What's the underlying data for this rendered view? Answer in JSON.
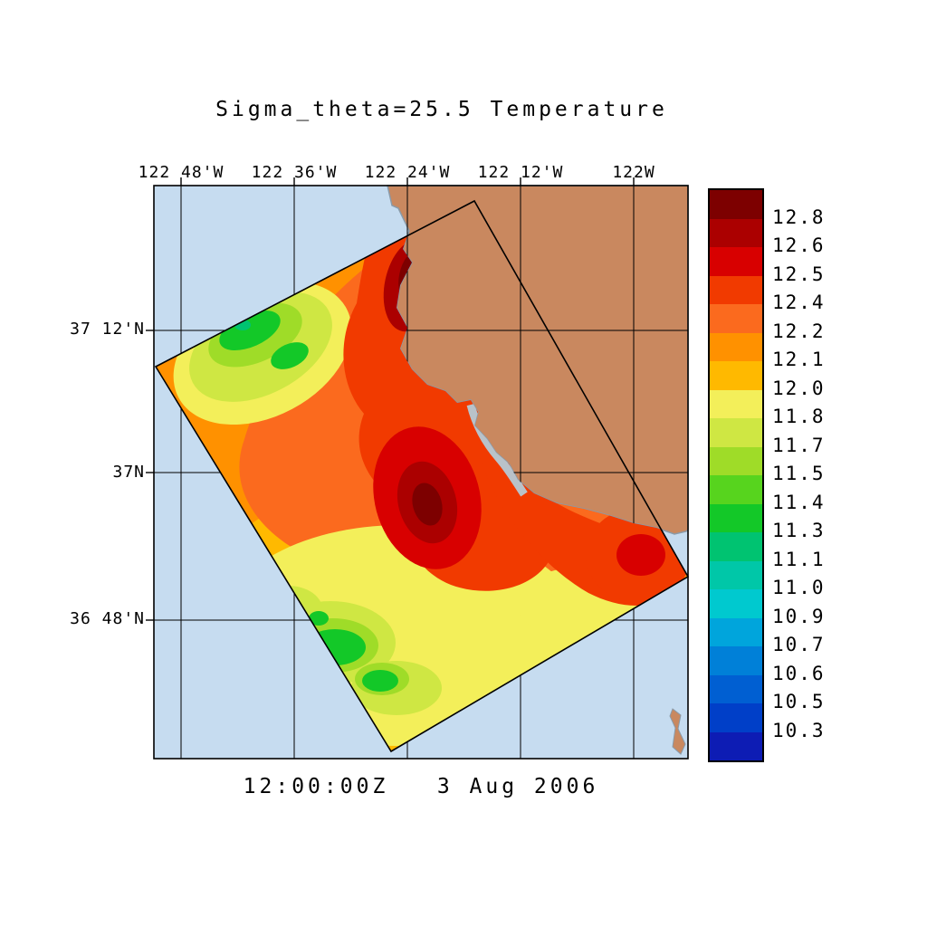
{
  "title": "Sigma_theta=25.5 Temperature",
  "timestamp": "12:00:00Z   3 Aug 2006",
  "axes": {
    "x_labels": [
      "122 48'W",
      "122 36'W",
      "122 24'W",
      "122 12'W",
      "122W"
    ],
    "y_labels": [
      "37 12'N",
      "37N",
      "36 48'N"
    ]
  },
  "colorbar": {
    "labels": [
      "12.8",
      "12.6",
      "12.5",
      "12.4",
      "12.2",
      "12.1",
      "12.0",
      "11.8",
      "11.7",
      "11.5",
      "11.4",
      "11.3",
      "11.1",
      "11.0",
      "10.9",
      "10.7",
      "10.6",
      "10.5",
      "10.3"
    ],
    "colors": [
      "#7d0000",
      "#ab0000",
      "#d80000",
      "#f13a00",
      "#fb6a1e",
      "#ff9100",
      "#ffb900",
      "#f3ef5a",
      "#cfe743",
      "#9fdc28",
      "#57d41e",
      "#13c828",
      "#00c371",
      "#00c7a8",
      "#00c9cf",
      "#00a5dc",
      "#0080d8",
      "#005fd2",
      "#003fc8",
      "#0d1cb4"
    ]
  },
  "colors": {
    "ocean": "#c6dcf0",
    "land": "#c9885f",
    "coastline": "#8a9aa8",
    "missing_data": "#b9c2c9",
    "grid": "#000000",
    "background": "#ffffff"
  },
  "chart_data": {
    "type": "heatmap",
    "title": "Sigma_theta=25.5 Temperature",
    "annotation": "12:00:00Z 3 Aug 2006",
    "x_ticks": [
      "122 48'W",
      "122 36'W",
      "122 24'W",
      "122 12'W",
      "122W"
    ],
    "y_ticks": [
      "37 12'N",
      "37N",
      "36 48'N"
    ],
    "colorbar_tick_values": [
      12.8,
      12.6,
      12.5,
      12.4,
      12.2,
      12.1,
      12.0,
      11.8,
      11.7,
      11.5,
      11.4,
      11.3,
      11.1,
      11.0,
      10.9,
      10.7,
      10.6,
      10.5,
      10.3
    ],
    "value_range_displayed": [
      11.3,
      12.8
    ],
    "legend_position": "right",
    "grid": true,
    "description": "Temperature on the sigma_theta=25.5 density surface in a rotated rectangular survey swath off the Monterey Bay / central California coast; land shown in tan, ocean in light blue.",
    "features": [
      {
        "region": "central swath near 122 24'W, 36 56'N",
        "approx_value": 12.8
      },
      {
        "region": "coastal tongue near 122 24'W, 37 14'N",
        "approx_value": 12.6
      },
      {
        "region": "near east corner of swath, ~122W 36 52'N",
        "approx_value": 12.5
      },
      {
        "region": "upper-left swath near 122 44'W, 37 10'N",
        "approx_value": 11.4
      },
      {
        "region": "lower-left swath near 122 34'W, 36 45'N",
        "approx_value": 11.4
      },
      {
        "region": "broad band across southern swath near 36 48'N",
        "approx_value": 11.8
      }
    ]
  }
}
